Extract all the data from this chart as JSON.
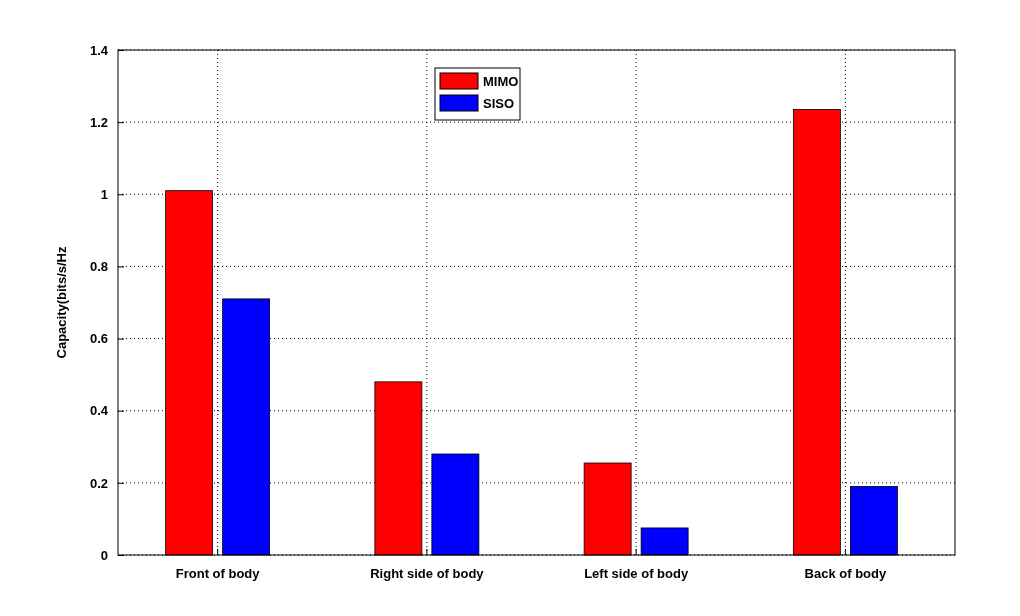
{
  "chart_data": {
    "type": "bar",
    "ylabel": "Capacity(bits/s/Hz",
    "categories": [
      "Front of body",
      "Right side of body",
      "Left side of body",
      "Back of body"
    ],
    "series": [
      {
        "name": "MIMO",
        "color": "#ff0000",
        "values": [
          1.01,
          0.48,
          0.255,
          1.235
        ]
      },
      {
        "name": "SISO",
        "color": "#0000ff",
        "values": [
          0.71,
          0.28,
          0.075,
          0.19
        ]
      }
    ],
    "ylim": [
      0,
      1.4
    ],
    "yticks": [
      0,
      0.2,
      0.4,
      0.6,
      0.8,
      1,
      1.2,
      1.4
    ],
    "grid": true,
    "legend": "top"
  }
}
